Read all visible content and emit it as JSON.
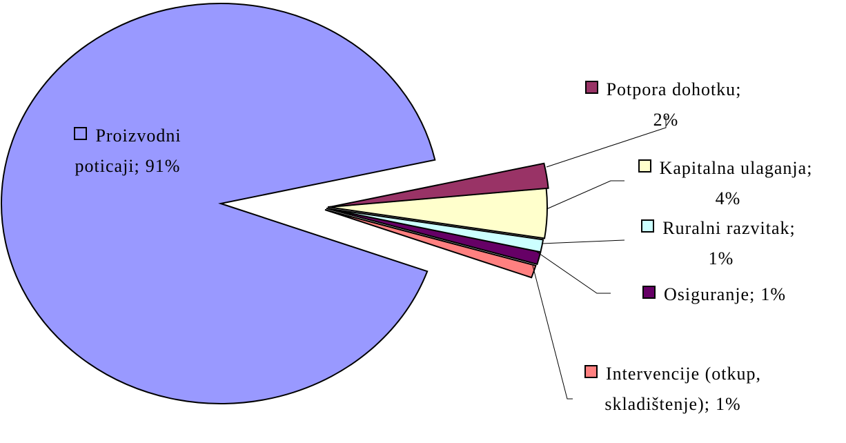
{
  "chart_data": {
    "type": "pie",
    "categories": [
      "Proizvodni poticaji",
      "Potpora dohotku",
      "Kapitalna ulaganja",
      "Ruralni razvitak",
      "Osiguranje",
      "Intervencije (otkup, skladištenje)"
    ],
    "values": [
      91,
      2,
      4,
      1,
      1,
      1
    ],
    "value_labels": [
      "91%",
      "2%",
      "4%",
      "1%",
      "1%",
      "1%"
    ],
    "label_separator": ";",
    "colors": [
      "#9999ff",
      "#993366",
      "#ffffcc",
      "#ccffff",
      "#660066",
      "#ff8080"
    ]
  }
}
